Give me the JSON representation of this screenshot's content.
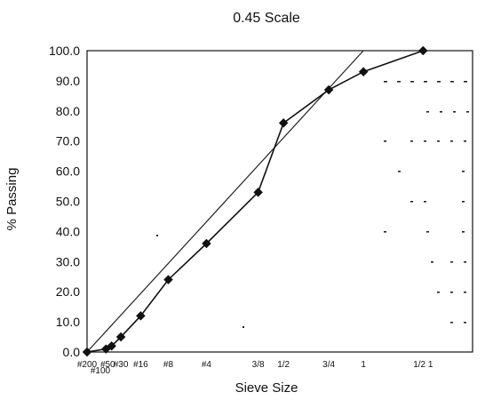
{
  "chart_data": {
    "type": "line",
    "title": "0.45 Scale",
    "xlabel": "Sieve Size",
    "ylabel": "% Passing",
    "ylim": [
      0,
      100
    ],
    "yticks": [
      "0.0",
      "10.0",
      "20.0",
      "30.0",
      "40.0",
      "50.0",
      "60.0",
      "70.0",
      "80.0",
      "90.0",
      "100.0"
    ],
    "x_scale": "power-0.45",
    "xlim_mm": [
      0.075,
      50
    ],
    "xticks": [
      {
        "label": "#200",
        "size_mm": 0.075
      },
      {
        "label": "#100",
        "size_mm": 0.15
      },
      {
        "label": "#50",
        "size_mm": 0.3
      },
      {
        "label": "#30",
        "size_mm": 0.6
      },
      {
        "label": "#16",
        "size_mm": 1.18
      },
      {
        "label": "#8",
        "size_mm": 2.36
      },
      {
        "label": "#4",
        "size_mm": 4.75
      },
      {
        "label": "3/8",
        "size_mm": 9.5
      },
      {
        "label": "1/2",
        "size_mm": 12.5
      },
      {
        "label": "3/4",
        "size_mm": 19
      },
      {
        "label": "1",
        "size_mm": 25
      },
      {
        "label": "1/2 1",
        "size_mm": 37.5
      }
    ],
    "series": [
      {
        "name": "",
        "x": [
          0.075,
          0.3,
          0.4,
          0.6,
          1.18,
          2.36,
          4.75,
          9.5,
          12.5,
          19,
          25,
          37.5
        ],
        "y": [
          0,
          1,
          2,
          5,
          12,
          24,
          36,
          53,
          76,
          87,
          93,
          100
        ],
        "marker": "diamond"
      }
    ],
    "reference_line": {
      "description": "maximum density line",
      "from": {
        "x": 0.075,
        "y": 0
      },
      "to": {
        "x": 25,
        "y": 100
      }
    },
    "grid": false
  }
}
